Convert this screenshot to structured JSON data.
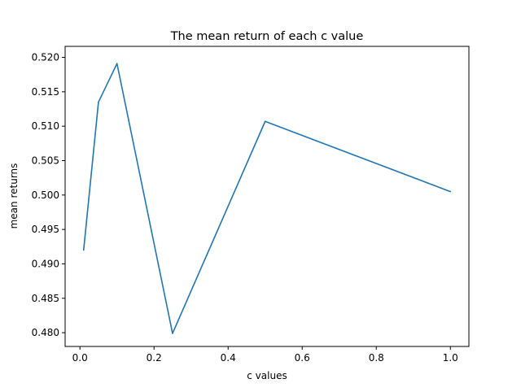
{
  "chart_data": {
    "type": "line",
    "title": "The mean return of each c value",
    "xlabel": "c values",
    "ylabel": "mean returns",
    "xlim": [
      -0.04,
      1.05
    ],
    "ylim": [
      0.478,
      0.5216
    ],
    "xticks": [
      0.0,
      0.2,
      0.4,
      0.6,
      0.8,
      1.0
    ],
    "xtick_labels": [
      "0.0",
      "0.2",
      "0.4",
      "0.6",
      "0.8",
      "1.0"
    ],
    "yticks": [
      0.48,
      0.485,
      0.49,
      0.495,
      0.5,
      0.505,
      0.51,
      0.515,
      0.52
    ],
    "ytick_labels": [
      "0.480",
      "0.485",
      "0.490",
      "0.495",
      "0.500",
      "0.505",
      "0.510",
      "0.515",
      "0.520"
    ],
    "grid": false,
    "series": [
      {
        "color": "#1f77b4",
        "x": [
          0.01,
          0.05,
          0.1,
          0.25,
          0.5,
          1.0
        ],
        "y": [
          0.492,
          0.5135,
          0.5191,
          0.4799,
          0.5107,
          0.5005
        ]
      }
    ]
  }
}
